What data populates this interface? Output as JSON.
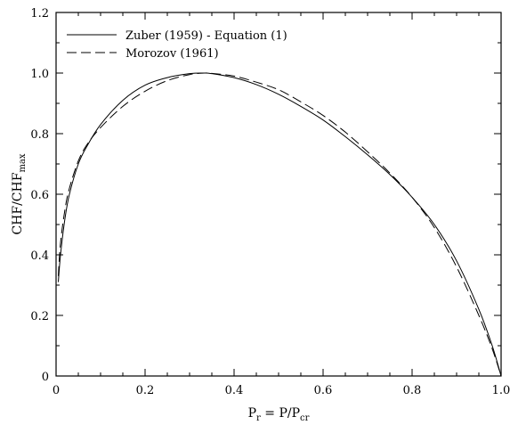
{
  "chart_data": {
    "type": "line",
    "xlabel": {
      "main": "P",
      "sub1": "r",
      "mid": " = P/P",
      "sub2": "cr"
    },
    "ylabel": {
      "main": "CHF/CHF",
      "sub": "max"
    },
    "xlim": [
      0,
      1.0
    ],
    "ylim": [
      0,
      1.2
    ],
    "x_ticks": [
      "0",
      "0.2",
      "0.4",
      "0.6",
      "0.8",
      "1.0"
    ],
    "y_ticks": [
      "0",
      "0.2",
      "0.4",
      "0.6",
      "0.8",
      "1.0",
      "1.2"
    ],
    "x_tick_values": [
      0,
      0.2,
      0.4,
      0.6,
      0.8,
      1.0
    ],
    "y_tick_values": [
      0,
      0.2,
      0.4,
      0.6,
      0.8,
      1.0,
      1.2
    ],
    "grid": false,
    "legend_position": "top-left",
    "series": [
      {
        "name": "Zuber (1959) - Equation (1)",
        "style": "solid",
        "x": [
          0.005,
          0.01,
          0.02,
          0.03,
          0.05,
          0.07,
          0.1,
          0.15,
          0.2,
          0.25,
          0.3,
          0.333,
          0.35,
          0.4,
          0.45,
          0.5,
          0.55,
          0.6,
          0.65,
          0.7,
          0.75,
          0.8,
          0.85,
          0.9,
          0.95,
          0.98,
          1.0
        ],
        "y": [
          0.31,
          0.4,
          0.52,
          0.6,
          0.7,
          0.76,
          0.83,
          0.91,
          0.96,
          0.985,
          0.998,
          1.0,
          0.998,
          0.985,
          0.962,
          0.93,
          0.89,
          0.845,
          0.79,
          0.73,
          0.665,
          0.59,
          0.5,
          0.38,
          0.22,
          0.1,
          0.0
        ]
      },
      {
        "name": "Morozov (1961)",
        "style": "dashed",
        "x": [
          0.005,
          0.01,
          0.02,
          0.03,
          0.05,
          0.07,
          0.1,
          0.15,
          0.2,
          0.25,
          0.3,
          0.333,
          0.35,
          0.4,
          0.45,
          0.5,
          0.55,
          0.6,
          0.65,
          0.7,
          0.75,
          0.8,
          0.85,
          0.9,
          0.95,
          0.98,
          1.0
        ],
        "y": [
          0.33,
          0.44,
          0.55,
          0.62,
          0.71,
          0.765,
          0.82,
          0.89,
          0.94,
          0.975,
          0.995,
          1.0,
          0.999,
          0.99,
          0.97,
          0.945,
          0.905,
          0.86,
          0.805,
          0.74,
          0.67,
          0.59,
          0.49,
          0.36,
          0.2,
          0.09,
          0.0
        ]
      }
    ]
  }
}
